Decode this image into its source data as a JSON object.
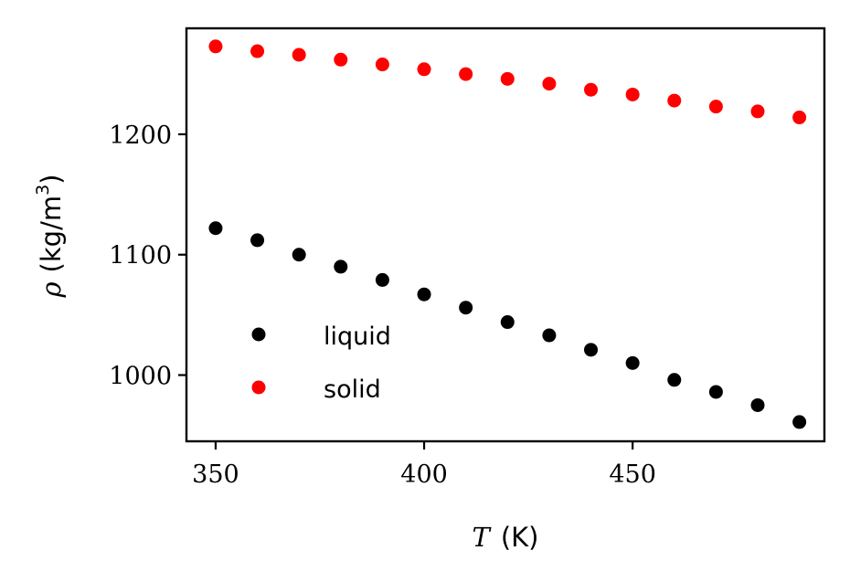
{
  "chart_data": {
    "type": "scatter",
    "x_axis": {
      "label_symbol": "T",
      "label_unit": "(K)",
      "range": [
        343,
        496
      ],
      "ticks": [
        350,
        400,
        450
      ],
      "tick_labels": [
        "350",
        "400",
        "450"
      ]
    },
    "y_axis": {
      "label_symbol": "ρ",
      "label_unit_open": "(kg/m",
      "label_unit_sup": "3",
      "label_unit_close": ")",
      "range": [
        945,
        1288
      ],
      "ticks": [
        1000,
        1100,
        1200
      ],
      "tick_labels": [
        "1000",
        "1100",
        "1200"
      ]
    },
    "grid": false,
    "legend_position": "lower-left",
    "series": [
      {
        "name": "liquid",
        "color": "#000000",
        "x": [
          350,
          360,
          370,
          380,
          390,
          400,
          410,
          420,
          430,
          440,
          450,
          460,
          470,
          480,
          490
        ],
        "y": [
          1122,
          1112,
          1100,
          1090,
          1079,
          1067,
          1056,
          1044,
          1033,
          1021,
          1010,
          996,
          986,
          975,
          961
        ]
      },
      {
        "name": "solid",
        "color": "#ff0000",
        "x": [
          350,
          360,
          370,
          380,
          390,
          400,
          410,
          420,
          430,
          440,
          450,
          460,
          470,
          480,
          490
        ],
        "y": [
          1273,
          1269,
          1266,
          1262,
          1258,
          1254,
          1250,
          1246,
          1242,
          1237,
          1233,
          1228,
          1223,
          1219,
          1214
        ]
      }
    ]
  }
}
